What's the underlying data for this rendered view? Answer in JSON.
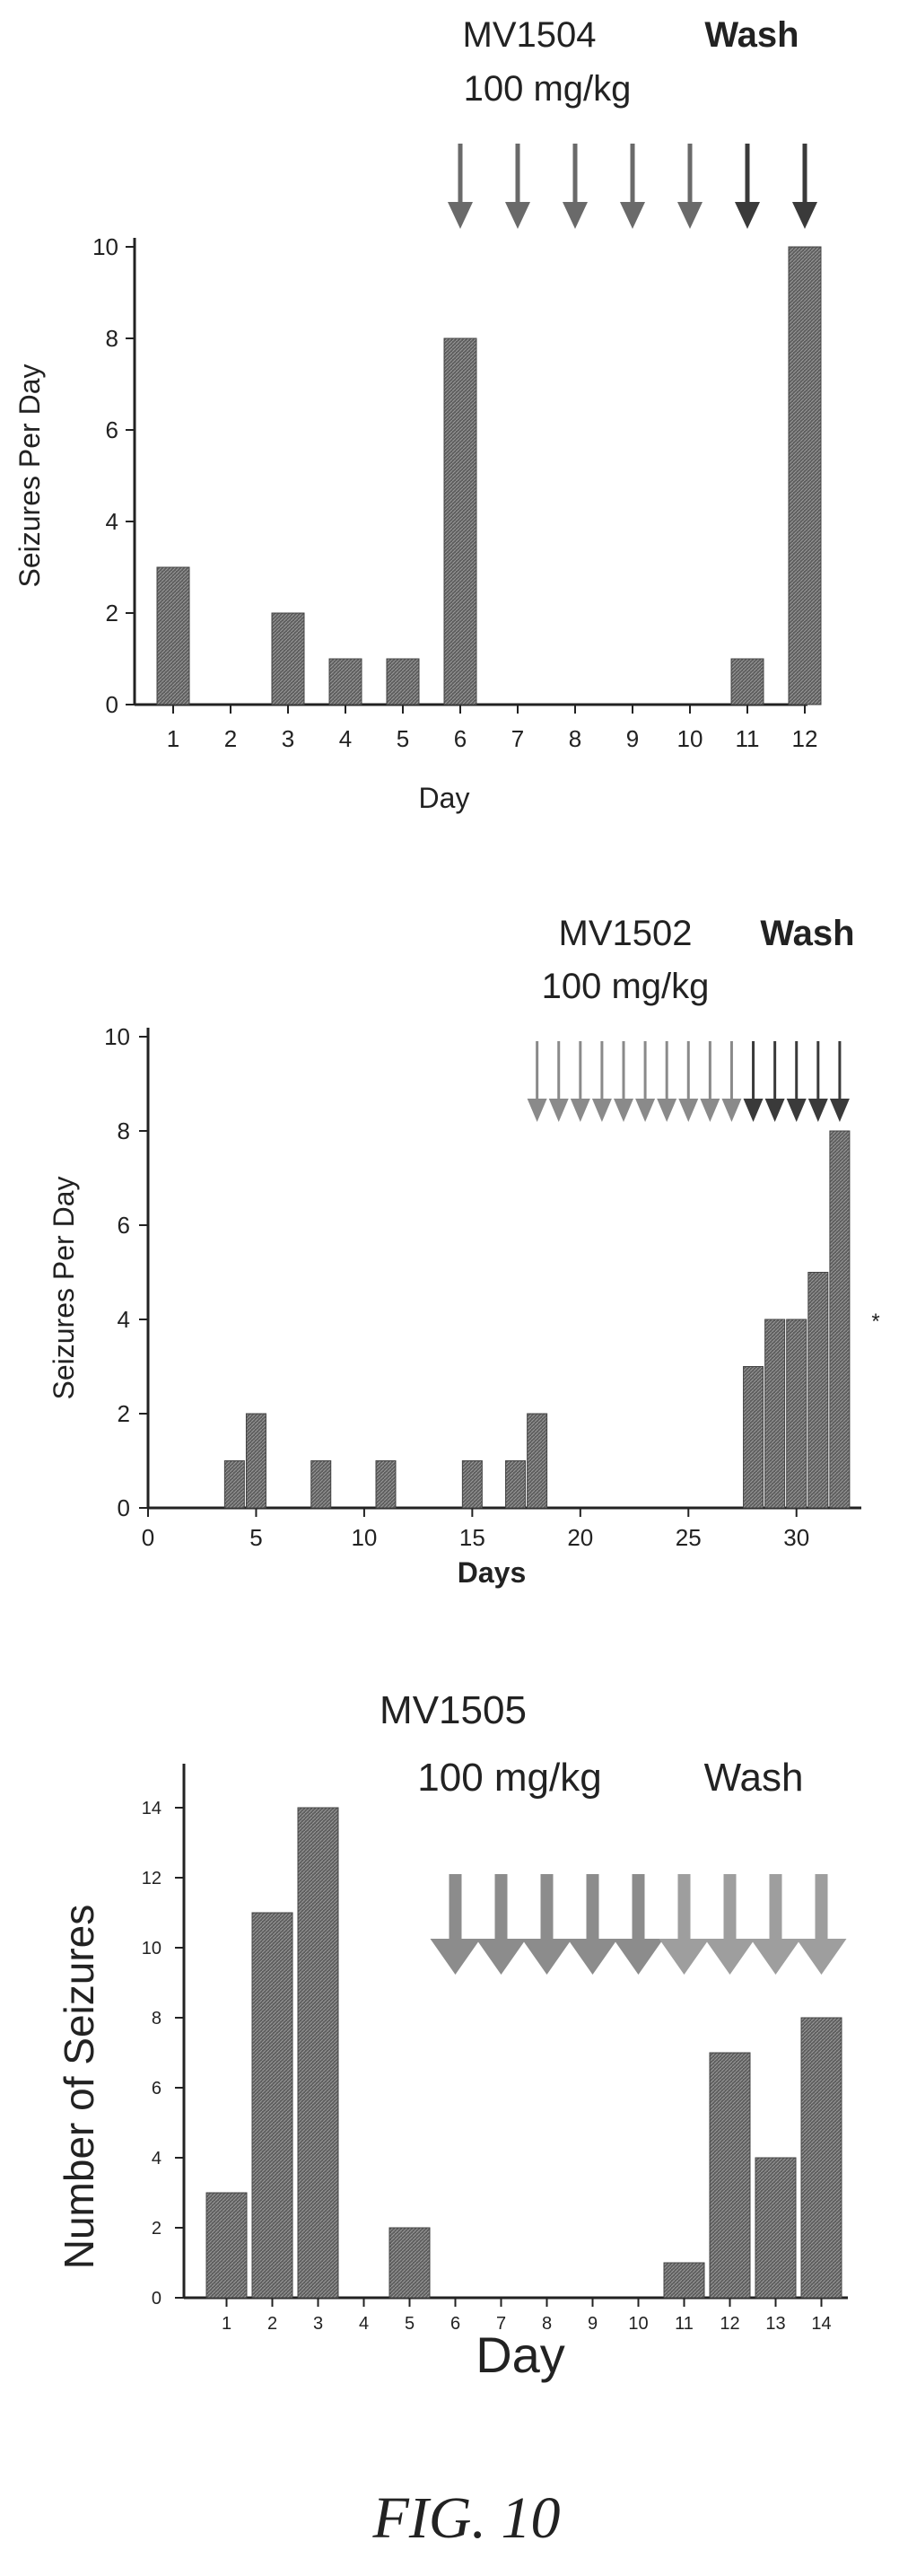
{
  "figure": {
    "caption": "FIG. 10"
  },
  "chart_data": [
    {
      "type": "bar",
      "xlabel": "Day",
      "ylabel": "Seizures Per Day",
      "x": [
        1,
        2,
        3,
        4,
        5,
        6,
        7,
        8,
        9,
        10,
        11,
        12
      ],
      "values": [
        3,
        0,
        2,
        1,
        1,
        8,
        0,
        0,
        0,
        0,
        1,
        10
      ],
      "x_ticks": [
        "1",
        "2",
        "3",
        "4",
        "5",
        "6",
        "7",
        "8",
        "9",
        "10",
        "11",
        "12"
      ],
      "ylim": [
        0,
        10
      ],
      "y_ticks": [
        "0",
        "2",
        "4",
        "6",
        "8",
        "10"
      ],
      "annotations": {
        "drug": "MV1504",
        "dose": "100 mg/kg",
        "wash": "Wash"
      },
      "drug_arrow_days": [
        6,
        7,
        8,
        9,
        10
      ],
      "wash_arrow_days": [
        11,
        12
      ],
      "grid": false,
      "colors": {
        "bar": "#6e6e6e",
        "drug_arrow": "#6a6a6a",
        "wash_arrow": "#3a3a3a"
      }
    },
    {
      "type": "bar",
      "xlabel": "Days",
      "ylabel": "Seizures Per Day",
      "x": [
        4,
        5,
        8,
        11,
        15,
        17,
        18,
        28,
        29,
        30,
        31,
        32
      ],
      "values": [
        1,
        2,
        1,
        1,
        1,
        1,
        2,
        3,
        4,
        4,
        5,
        8
      ],
      "xlim": [
        0,
        33
      ],
      "x_ticks": [
        "0",
        "5",
        "10",
        "15",
        "20",
        "25",
        "30"
      ],
      "ylim": [
        0,
        10
      ],
      "y_ticks": [
        "0",
        "2",
        "4",
        "6",
        "8",
        "10"
      ],
      "annotations": {
        "drug": "MV1502",
        "dose": "100 mg/kg",
        "wash": "Wash"
      },
      "drug_arrow_days": [
        18,
        19,
        20,
        21,
        22,
        23,
        24,
        25,
        26,
        27
      ],
      "wash_arrow_days": [
        28,
        29,
        30,
        31,
        32
      ],
      "extra_mark": "*",
      "grid": false,
      "colors": {
        "bar": "#6e6e6e",
        "drug_arrow": "#8a8a8a",
        "wash_arrow": "#3a3a3a"
      }
    },
    {
      "type": "bar",
      "xlabel": "Day",
      "ylabel": "Number of Seizures",
      "x": [
        1,
        2,
        3,
        4,
        5,
        6,
        7,
        8,
        9,
        10,
        11,
        12,
        13,
        14
      ],
      "values": [
        3,
        11,
        14,
        0,
        2,
        0,
        0,
        0,
        0,
        0,
        1,
        7,
        4,
        8
      ],
      "x_ticks": [
        "1",
        "2",
        "3",
        "4",
        "5",
        "6",
        "7",
        "8",
        "9",
        "10",
        "11",
        "12",
        "13",
        "14"
      ],
      "ylim": [
        0,
        15
      ],
      "y_ticks": [
        "0",
        "2",
        "4",
        "6",
        "8",
        "10",
        "12",
        "14"
      ],
      "annotations": {
        "drug": "MV1505",
        "dose": "100 mg/kg",
        "wash": "Wash"
      },
      "drug_arrow_days": [
        6,
        7,
        8,
        9,
        10
      ],
      "wash_arrow_days": [
        11,
        12,
        13,
        14
      ],
      "grid": false,
      "colors": {
        "bar": "#6e6e6e",
        "drug_arrow": "#8c8c8c",
        "wash_arrow": "#9e9e9e"
      }
    }
  ]
}
